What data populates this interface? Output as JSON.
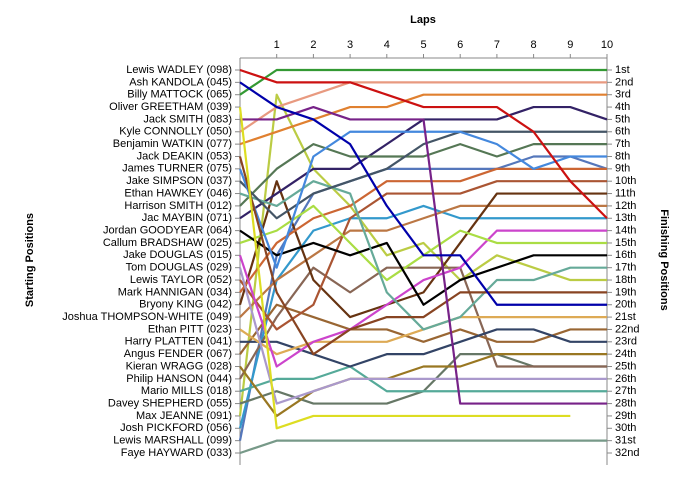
{
  "chart_data": {
    "type": "line",
    "title": "Laps",
    "ylabel": "Starting Positions",
    "y2label": "Finishing Positions",
    "x": [
      0,
      1,
      2,
      3,
      4,
      5,
      6,
      7,
      8,
      9,
      10
    ],
    "xlim": [
      0,
      10
    ],
    "xticks": [
      1,
      2,
      3,
      4,
      5,
      6,
      7,
      8,
      9,
      10
    ],
    "ylim": [
      1,
      32
    ],
    "y_inverted": true,
    "yticks": [
      {
        "value": 1,
        "label": "1st"
      },
      {
        "value": 2,
        "label": "2nd"
      },
      {
        "value": 3,
        "label": "3rd"
      },
      {
        "value": 4,
        "label": "4th"
      },
      {
        "value": 5,
        "label": "5th"
      },
      {
        "value": 6,
        "label": "6th"
      },
      {
        "value": 7,
        "label": "7th"
      },
      {
        "value": 8,
        "label": "8th"
      },
      {
        "value": 9,
        "label": "9th"
      },
      {
        "value": 10,
        "label": "10th"
      },
      {
        "value": 11,
        "label": "11th"
      },
      {
        "value": 12,
        "label": "12th"
      },
      {
        "value": 13,
        "label": "13th"
      },
      {
        "value": 14,
        "label": "14th"
      },
      {
        "value": 15,
        "label": "15th"
      },
      {
        "value": 16,
        "label": "16th"
      },
      {
        "value": 17,
        "label": "17th"
      },
      {
        "value": 18,
        "label": "18th"
      },
      {
        "value": 19,
        "label": "19th"
      },
      {
        "value": 20,
        "label": "20th"
      },
      {
        "value": 21,
        "label": "21st"
      },
      {
        "value": 22,
        "label": "22nd"
      },
      {
        "value": 23,
        "label": "23rd"
      },
      {
        "value": 24,
        "label": "24th"
      },
      {
        "value": 25,
        "label": "25th"
      },
      {
        "value": 26,
        "label": "26th"
      },
      {
        "value": 27,
        "label": "27th"
      },
      {
        "value": 28,
        "label": "28th"
      },
      {
        "value": 29,
        "label": "29th"
      },
      {
        "value": 30,
        "label": "30th"
      },
      {
        "value": 31,
        "label": "31st"
      },
      {
        "value": 32,
        "label": "32nd"
      }
    ],
    "series": [
      {
        "name": "Lewis WADLEY (098)",
        "color": "#cc1111",
        "values": [
          1,
          2,
          2,
          2,
          3,
          4,
          4,
          4,
          6,
          10,
          13
        ]
      },
      {
        "name": "Ash KANDOLA (045)",
        "color": "#0000aa",
        "values": [
          2,
          4,
          5,
          7,
          12,
          16,
          16,
          20,
          20,
          20,
          20
        ]
      },
      {
        "name": "Billy MATTOCK (065)",
        "color": "#339933",
        "values": [
          3,
          1,
          1,
          1,
          1,
          1,
          1,
          1,
          1,
          1,
          1
        ]
      },
      {
        "name": "Oliver GREETHAM (039)",
        "color": "#dddd22",
        "values": [
          4,
          30,
          29,
          29,
          29,
          29,
          29,
          29,
          29,
          29,
          null
        ]
      },
      {
        "name": "Jack SMITH (083)",
        "color": "#772288",
        "values": [
          5,
          5,
          4,
          5,
          5,
          5,
          28,
          28,
          28,
          28,
          28
        ]
      },
      {
        "name": "Kyle CONNOLLY (050)",
        "color": "#e89a80",
        "values": [
          6,
          4,
          3,
          2,
          2,
          2,
          2,
          2,
          2,
          2,
          2
        ]
      },
      {
        "name": "Benjamin WATKIN (077)",
        "color": "#e08030",
        "values": [
          7,
          6,
          5,
          4,
          4,
          3,
          3,
          3,
          3,
          3,
          3
        ]
      },
      {
        "name": "Jack DEAKIN (053)",
        "color": "#884422",
        "values": [
          8,
          19,
          24,
          22,
          21,
          21,
          19,
          19,
          19,
          19,
          19
        ]
      },
      {
        "name": "James TURNER (075)",
        "color": "#4488dd",
        "values": [
          9,
          17,
          8,
          6,
          6,
          6,
          6,
          7,
          9,
          8,
          8
        ]
      },
      {
        "name": "Jake SIMPSON (037)",
        "color": "#445566",
        "values": [
          10,
          13,
          11,
          10,
          9,
          7,
          6,
          6,
          6,
          6,
          6
        ]
      },
      {
        "name": "Ethan HAWKEY (046)",
        "color": "#66aa99",
        "values": [
          11,
          12,
          10,
          11,
          19,
          22,
          21,
          18,
          18,
          17,
          17
        ]
      },
      {
        "name": "Harrison SMITH (012)",
        "color": "#557755",
        "values": [
          12,
          9,
          7,
          8,
          8,
          8,
          7,
          8,
          7,
          7,
          7
        ]
      },
      {
        "name": "Jac MAYBIN (071)",
        "color": "#332266",
        "values": [
          13,
          11,
          9,
          9,
          7,
          5,
          5,
          5,
          4,
          4,
          5
        ]
      },
      {
        "name": "Jordan GOODYEAR (064)",
        "color": "#000000",
        "values": [
          14,
          16,
          15,
          16,
          15,
          20,
          18,
          17,
          16,
          16,
          16
        ]
      },
      {
        "name": "Callum BRADSHAW (025)",
        "color": "#aadd44",
        "values": [
          15,
          14,
          12,
          15,
          18,
          16,
          14,
          15,
          15,
          15,
          15
        ]
      },
      {
        "name": "Jake DOUGLAS (015)",
        "color": "#cc44cc",
        "values": [
          16,
          25,
          23,
          22,
          20,
          18,
          17,
          14,
          14,
          14,
          14
        ]
      },
      {
        "name": "Tom DOUGLAS (029)",
        "color": "#aa99cc",
        "values": [
          17,
          28,
          27,
          26,
          26,
          26,
          26,
          26,
          26,
          26,
          26
        ]
      },
      {
        "name": "Lewis TAYLOR (052)",
        "color": "#aa5533",
        "values": [
          18,
          22,
          20,
          13,
          11,
          11,
          11,
          10,
          10,
          10,
          10
        ]
      },
      {
        "name": "Mark HANNIGAN (034)",
        "color": "#cc6633",
        "values": [
          19,
          15,
          13,
          12,
          10,
          10,
          10,
          9,
          9,
          9,
          9
        ]
      },
      {
        "name": "Bryony KING (042)",
        "color": "#663311",
        "values": [
          20,
          10,
          18,
          21,
          20,
          19,
          15,
          11,
          11,
          11,
          11
        ]
      },
      {
        "name": "Joshua THOMPSON-WHITE (049)",
        "color": "#bb7744",
        "values": [
          21,
          18,
          16,
          14,
          14,
          13,
          12,
          12,
          12,
          12,
          12
        ]
      },
      {
        "name": "Ethan PITT (023)",
        "color": "#ddaa55",
        "values": [
          22,
          24,
          23,
          23,
          23,
          22,
          21,
          21,
          21,
          21,
          21
        ]
      },
      {
        "name": "Harry PLATTEN (041)",
        "color": "#334466",
        "values": [
          23,
          23,
          24,
          25,
          24,
          24,
          23,
          22,
          22,
          23,
          23
        ]
      },
      {
        "name": "Angus FENDER (067)",
        "color": "#996633",
        "values": [
          24,
          20,
          21,
          22,
          22,
          23,
          22,
          23,
          23,
          22,
          22
        ]
      },
      {
        "name": "Kieran WRAGG (028)",
        "color": "#997722",
        "values": [
          25,
          29,
          27,
          26,
          26,
          25,
          25,
          24,
          24,
          24,
          24
        ]
      },
      {
        "name": "Philip HANSON (044)",
        "color": "#886655",
        "values": [
          26,
          21,
          17,
          19,
          17,
          17,
          17,
          25,
          25,
          25,
          25
        ]
      },
      {
        "name": "Mario MILLS (018)",
        "color": "#55aa99",
        "values": [
          27,
          26,
          26,
          25,
          27,
          27,
          27,
          27,
          27,
          27,
          27
        ]
      },
      {
        "name": "Davey SHEPHERD (055)",
        "color": "#667766",
        "values": [
          28,
          27,
          28,
          28,
          28,
          27,
          24,
          24,
          25,
          25,
          25
        ]
      },
      {
        "name": "Max JEANNE (091)",
        "color": "#bbcc44",
        "values": [
          29,
          3,
          9,
          12,
          16,
          15,
          18,
          16,
          17,
          18,
          18
        ]
      },
      {
        "name": "Josh PICKFORD (056)",
        "color": "#3399cc",
        "values": [
          30,
          18,
          14,
          13,
          13,
          12,
          13,
          13,
          13,
          13,
          13
        ]
      },
      {
        "name": "Lewis MARSHALL (099)",
        "color": "#5577bb",
        "values": [
          31,
          16,
          11,
          10,
          9,
          9,
          9,
          9,
          8,
          8,
          9
        ]
      },
      {
        "name": "Faye HAYWARD (033)",
        "color": "#779988",
        "values": [
          32,
          31,
          31,
          31,
          31,
          31,
          31,
          31,
          31,
          31,
          31
        ]
      }
    ]
  }
}
